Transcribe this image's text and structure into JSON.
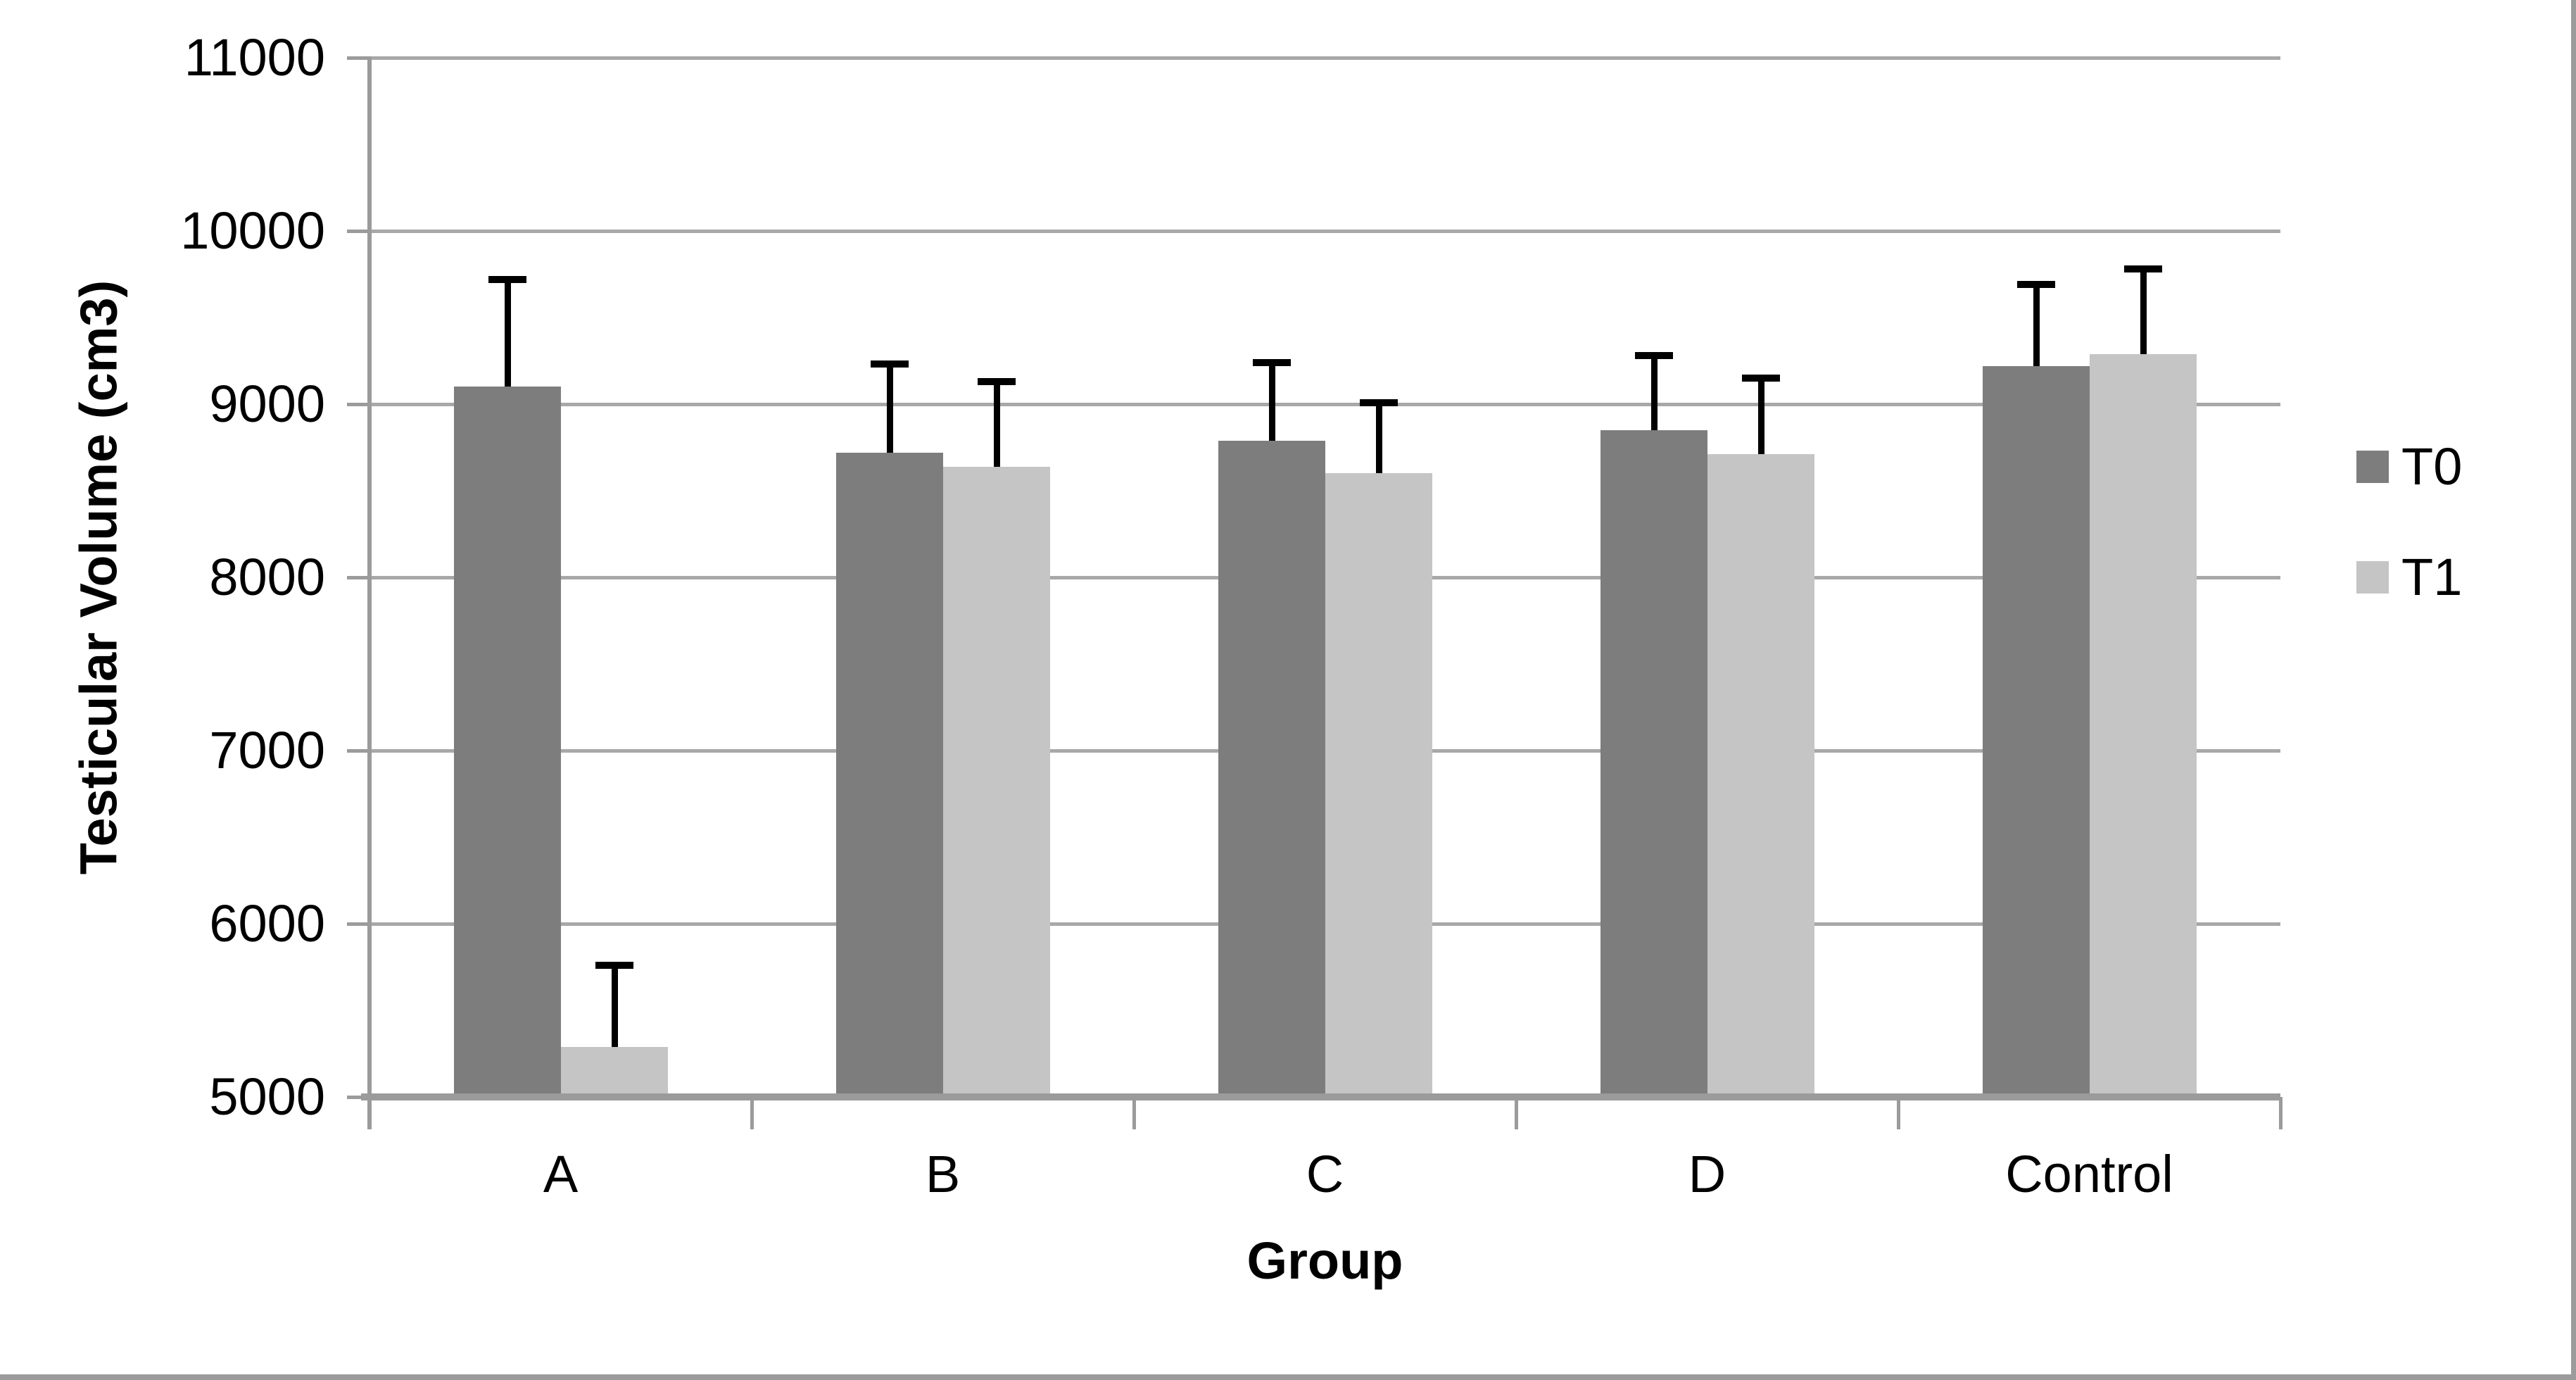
{
  "chart_data": {
    "type": "bar",
    "title": "",
    "xlabel": "Group",
    "ylabel": "Testicular Volume (cm3)",
    "categories": [
      "A",
      "B",
      "C",
      "D",
      "Control"
    ],
    "series": [
      {
        "name": "T0",
        "color": "#7d7d7d",
        "values": [
          9100,
          8720,
          8790,
          8850,
          9220
        ],
        "error_plus": [
          620,
          510,
          450,
          430,
          470
        ]
      },
      {
        "name": "T1",
        "color": "#c5c5c5",
        "values": [
          5290,
          8640,
          8600,
          8710,
          9290
        ],
        "error_plus": [
          470,
          490,
          410,
          440,
          490
        ]
      }
    ],
    "ylim": [
      5000,
      11000
    ],
    "ytick_step": 1000,
    "ytick_labels": [
      "5000",
      "6000",
      "7000",
      "8000",
      "9000",
      "10000",
      "11000"
    ],
    "grid": true,
    "error_bars": "plus_only",
    "legend_position": "right",
    "colors": {
      "gridline": "#a8a8a8",
      "axis": "#9b9b9b",
      "error_bar": "#000000",
      "text": "#000000",
      "background": "#ffffff",
      "figure_border": "#9b9b9b"
    }
  }
}
